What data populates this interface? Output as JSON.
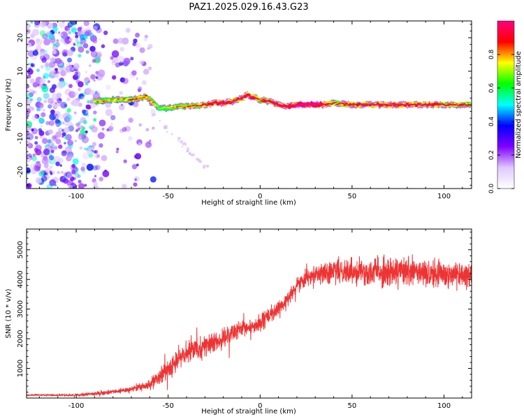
{
  "chart_data": [
    {
      "type": "heatmap",
      "title": "PAZ1.2025.029.16.43.G23",
      "xlabel": "Height of straight line (km)",
      "ylabel": "Frequency (Hz)",
      "xlim": [
        -127,
        115
      ],
      "ylim": [
        -25,
        25
      ],
      "xticks": [
        -100,
        -50,
        0,
        50,
        100
      ],
      "yticks": [
        -20,
        -10,
        0,
        10,
        20
      ],
      "colorbar": {
        "label": "Normalized spectral amplitude",
        "range": [
          0.0,
          1.0
        ],
        "ticks": [
          0.0,
          0.2,
          0.4,
          0.6,
          0.8
        ],
        "colormap": [
          "#ffffff",
          "#e0c8ff",
          "#8000ff",
          "#0000ff",
          "#00ffff",
          "#00ff00",
          "#ffff00",
          "#ff0000",
          "#ff0080"
        ]
      },
      "ridge": {
        "x": [
          -90,
          -80,
          -70,
          -62,
          -58,
          -55,
          -50,
          -45,
          -40,
          -35,
          -30,
          -25,
          -20,
          -15,
          -10,
          -7,
          -5,
          0,
          5,
          10,
          15,
          20,
          25,
          30,
          35,
          40,
          50,
          60,
          70,
          80,
          90,
          100,
          110,
          115
        ],
        "frequency_hz": [
          1.0,
          1.5,
          1.5,
          2.5,
          0.5,
          -1.0,
          -1.0,
          -0.5,
          -0.5,
          -0.3,
          0.0,
          0.5,
          0.5,
          1.0,
          2.0,
          3.0,
          2.5,
          1.5,
          1.0,
          0.0,
          -0.5,
          0.0,
          0.0,
          0.0,
          0.0,
          0.5,
          0.0,
          0.0,
          0.0,
          0.0,
          0.0,
          0.0,
          0.0,
          0.0
        ],
        "amplitude": [
          0.5,
          0.5,
          0.55,
          0.6,
          0.5,
          0.4,
          0.45,
          0.5,
          0.55,
          0.6,
          0.65,
          0.7,
          0.75,
          0.7,
          0.7,
          0.75,
          0.7,
          0.6,
          0.7,
          0.75,
          0.8,
          0.85,
          0.95,
          0.95,
          0.7,
          0.6,
          0.65,
          0.7,
          0.7,
          0.7,
          0.7,
          0.65,
          0.6,
          0.6
        ]
      },
      "noise_region_x": [
        -127,
        -88
      ]
    },
    {
      "type": "line",
      "xlabel": "Height of straight line (km)",
      "ylabel": "SNR (10 * v/v)",
      "xlim": [
        -127,
        115
      ],
      "ylim": [
        0,
        5700
      ],
      "xticks": [
        -100,
        -50,
        0,
        50,
        100
      ],
      "yticks": [
        1000,
        2000,
        3000,
        4000,
        5000
      ],
      "line_color": "#ee3333",
      "series": [
        {
          "x": [
            -127,
            -110,
            -100,
            -90,
            -80,
            -70,
            -60,
            -55,
            -50,
            -45,
            -40,
            -35,
            -30,
            -25,
            -20,
            -15,
            -10,
            -5,
            0,
            5,
            10,
            15,
            20,
            25,
            30,
            35,
            40,
            45,
            50,
            60,
            70,
            80,
            90,
            100,
            110,
            115
          ],
          "values": [
            100,
            100,
            100,
            150,
            200,
            300,
            450,
            650,
            1000,
            1300,
            1500,
            1700,
            1750,
            1850,
            2000,
            2200,
            2300,
            2400,
            2500,
            2800,
            3000,
            3300,
            3800,
            4100,
            4200,
            4200,
            4250,
            4300,
            4300,
            4300,
            4250,
            4250,
            4200,
            4200,
            4200,
            4200
          ],
          "spread": [
            40,
            50,
            60,
            80,
            100,
            140,
            250,
            400,
            500,
            550,
            550,
            500,
            500,
            450,
            450,
            450,
            400,
            400,
            400,
            400,
            400,
            350,
            350,
            400,
            450,
            500,
            550,
            600,
            650,
            700,
            700,
            700,
            700,
            700,
            700,
            700
          ]
        }
      ]
    }
  ]
}
